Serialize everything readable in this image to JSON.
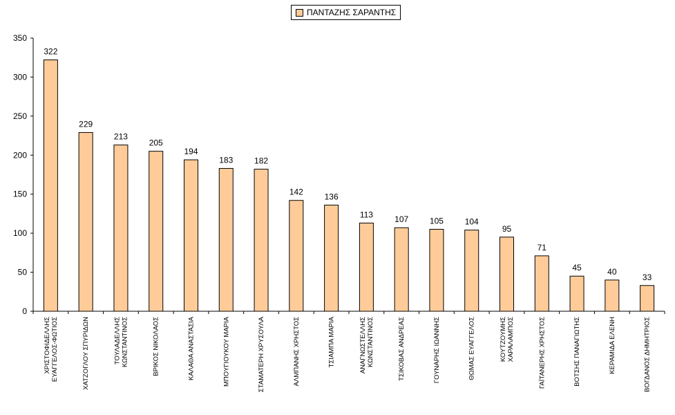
{
  "chart_data": {
    "type": "bar",
    "categories": [
      [
        "ΧΡΙΣΤΟΦΙΔΕΛΛΗΣ",
        "ΕΥΑΓΓΕΛΟΣ-ΦΩΤΙΟΣ"
      ],
      [
        "ΧΑΤΖΟΓΛΟΥ ΣΠΥΡΙΔΩΝ"
      ],
      [
        "ΤΟΥΛΑΔΕΛΛΗΣ",
        "ΚΩΝΣΤΑΝΤΙΝΟΣ"
      ],
      [
        "ΒΡΙΚΟΣ ΝΙΚΟΛΑΟΣ"
      ],
      [
        "ΚΑΛΑΘΑ ΑΝΑΣΤΑΣΙΑ"
      ],
      [
        "ΜΠΟΥΓΙΟΥΚΟΥ ΜΑΡΙΑ"
      ],
      [
        "ΣΤΑΜΑΤΕΡΗ ΧΡΥΣΟΥΛΑ"
      ],
      [
        "ΑΛΜΠΑΝΗΣ ΧΡΗΣΤΟΣ"
      ],
      [
        "ΤΣΙΑΜΠΑ ΜΑΡΙΑ"
      ],
      [
        "ΑΝΑΓΝΩΣΤΕΛΛΗΣ",
        "ΚΩΝΣΤΑΝΤΙΝΟΣ"
      ],
      [
        "ΤΣΙΚΟΒΑΣ ΑΝΔΡΕΑΣ"
      ],
      [
        "ΓΟΥΝΑΡΗΣ ΙΩΑΝΝΗΣ"
      ],
      [
        "ΘΩΜΑΣ ΕΥΑΓΓΕΛΟΣ"
      ],
      [
        "ΚΟΥΤΖΟΥΜΗΣ",
        "ΧΑΡΑΛΑΜΠΟΣ"
      ],
      [
        "ΓΑΪΤΑΝΕΡΗΣ ΧΡΗΣΤΟΣ"
      ],
      [
        "ΒΟΤΣΗΣ ΠΑΝΑΓΙΩΤΗΣ"
      ],
      [
        "ΚΕΡΑΜΙΔΑ ΕΛΕΝΗ"
      ],
      [
        "ΒΟΓΔΑΝΟΣ ΔΗΜΗΤΡΙΟΣ"
      ]
    ],
    "series": [
      {
        "name": "ΠΑΝΤΑΖΗΣ ΣΑΡΑΝΤΗΣ",
        "values": [
          322,
          229,
          213,
          205,
          194,
          183,
          182,
          142,
          136,
          113,
          107,
          105,
          104,
          95,
          71,
          45,
          40,
          33
        ]
      }
    ],
    "ylim": [
      0,
      350
    ],
    "yticks": [
      0,
      50,
      100,
      150,
      200,
      250,
      300,
      350
    ],
    "data_labels": true,
    "grid": false,
    "legend": "top-center",
    "colors": {
      "bar_fill": "#FFCC99",
      "bar_stroke": "#000000",
      "axis": "#000000"
    }
  }
}
